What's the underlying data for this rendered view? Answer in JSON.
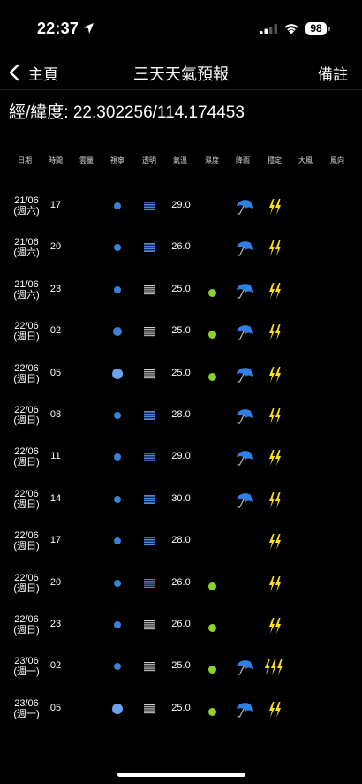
{
  "status": {
    "time": "22:37",
    "battery": "98"
  },
  "nav": {
    "back_label": "主頁",
    "title": "三天天氣預報",
    "notes_label": "備註"
  },
  "coords": "經/緯度: 22.302256/114.174453",
  "headers": [
    "日期",
    "時間",
    "雲量",
    "視寧",
    "透明",
    "氣溫",
    "濕度",
    "降雨",
    "穩定",
    "大風",
    "風向"
  ],
  "rows": [
    {
      "date": "21/06",
      "weekday": "(週六)",
      "hour": "17",
      "temp": "29.0",
      "visibility": "small",
      "transparency": "light",
      "humidity": false,
      "rain": true,
      "bolts": 2
    },
    {
      "date": "21/06",
      "weekday": "(週六)",
      "hour": "20",
      "temp": "26.0",
      "visibility": "small",
      "transparency": "light",
      "humidity": false,
      "rain": true,
      "bolts": 2
    },
    {
      "date": "21/06",
      "weekday": "(週六)",
      "hour": "23",
      "temp": "25.0",
      "visibility": "small",
      "transparency": "dense",
      "humidity": true,
      "rain": true,
      "bolts": 2
    },
    {
      "date": "22/06",
      "weekday": "(週日)",
      "hour": "02",
      "temp": "25.0",
      "visibility": "medium",
      "transparency": "dense",
      "humidity": true,
      "rain": true,
      "bolts": 2
    },
    {
      "date": "22/06",
      "weekday": "(週日)",
      "hour": "05",
      "temp": "25.0",
      "visibility": "large",
      "transparency": "dense",
      "humidity": true,
      "rain": true,
      "bolts": 2
    },
    {
      "date": "22/06",
      "weekday": "(週日)",
      "hour": "08",
      "temp": "28.0",
      "visibility": "small",
      "transparency": "light",
      "humidity": false,
      "rain": true,
      "bolts": 2
    },
    {
      "date": "22/06",
      "weekday": "(週日)",
      "hour": "11",
      "temp": "29.0",
      "visibility": "small",
      "transparency": "light",
      "humidity": false,
      "rain": true,
      "bolts": 2
    },
    {
      "date": "22/06",
      "weekday": "(週日)",
      "hour": "14",
      "temp": "30.0",
      "visibility": "small",
      "transparency": "light",
      "humidity": false,
      "rain": true,
      "bolts": 2
    },
    {
      "date": "22/06",
      "weekday": "(週日)",
      "hour": "17",
      "temp": "28.0",
      "visibility": "small",
      "transparency": "light",
      "humidity": false,
      "rain": false,
      "bolts": 2
    },
    {
      "date": "22/06",
      "weekday": "(週日)",
      "hour": "20",
      "temp": "26.0",
      "visibility": "small",
      "transparency": "medium",
      "humidity": true,
      "rain": false,
      "bolts": 2
    },
    {
      "date": "22/06",
      "weekday": "(週日)",
      "hour": "23",
      "temp": "26.0",
      "visibility": "small",
      "transparency": "dense",
      "humidity": true,
      "rain": false,
      "bolts": 2
    },
    {
      "date": "23/06",
      "weekday": "(週一)",
      "hour": "02",
      "temp": "25.0",
      "visibility": "small",
      "transparency": "dense",
      "humidity": true,
      "rain": true,
      "bolts": 3
    },
    {
      "date": "23/06",
      "weekday": "(週一)",
      "hour": "05",
      "temp": "25.0",
      "visibility": "large",
      "transparency": "dense",
      "humidity": true,
      "rain": true,
      "bolts": 2
    }
  ],
  "colors": {
    "visibility": "#3e7fd6",
    "visibility_large": "#6aa3ec",
    "transparency": "#4f86e0",
    "transparency_dense": "#cfcfcf",
    "humidity": "#8fd12b",
    "rain": "#2f7fe6",
    "bolt": "#ffe11a"
  }
}
